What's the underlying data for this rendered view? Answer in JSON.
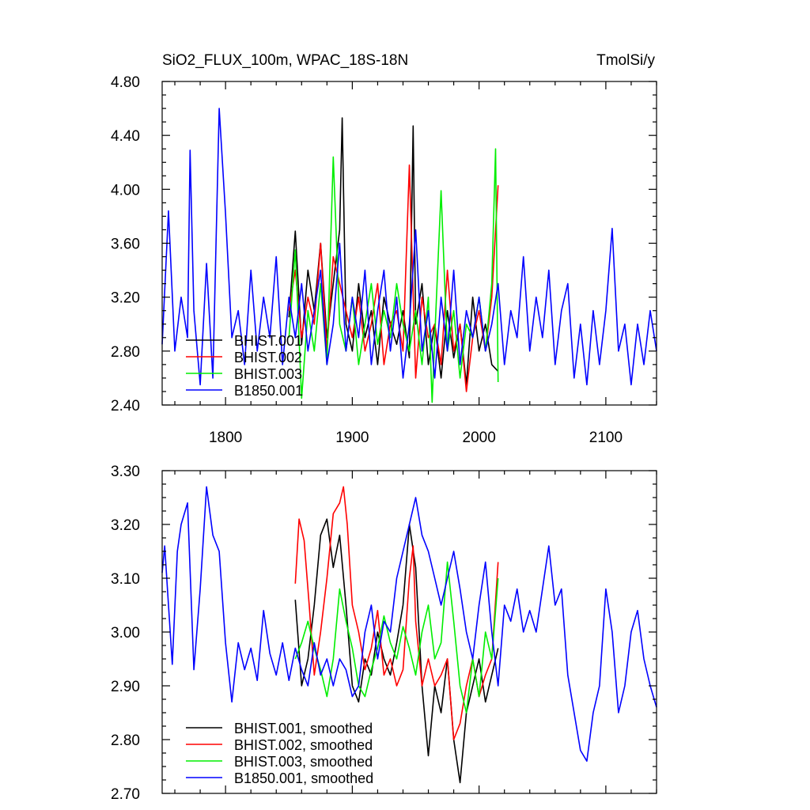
{
  "chart_data": [
    {
      "type": "line",
      "title": "SiO2_FLUX_100m, WPAC_18S-18N",
      "units": "TmolSi/y",
      "xlim": [
        1750,
        2140
      ],
      "ylim": [
        2.4,
        4.8
      ],
      "xticks": [
        1800,
        1900,
        2000,
        2100
      ],
      "xtick_labels": [
        "1800",
        "1900",
        "2000",
        "2100"
      ],
      "yticks": [
        2.4,
        2.8,
        3.2,
        3.6,
        4.0,
        4.4,
        4.8
      ],
      "ytick_labels": [
        "2.40",
        "2.80",
        "3.20",
        "3.60",
        "4.00",
        "4.40",
        "4.80"
      ],
      "legend_position": "bottom-left",
      "series": [
        {
          "name": "BHIST.001",
          "color": "#000000",
          "x": [
            1850,
            1855,
            1860,
            1865,
            1870,
            1875,
            1880,
            1885,
            1890,
            1892,
            1895,
            1900,
            1905,
            1910,
            1915,
            1920,
            1925,
            1930,
            1935,
            1940,
            1945,
            1948,
            1950,
            1955,
            1960,
            1965,
            1970,
            1975,
            1980,
            1985,
            1990,
            1995,
            2000,
            2005,
            2010,
            2015
          ],
          "y": [
            3.05,
            3.69,
            2.85,
            3.4,
            3.1,
            3.6,
            2.9,
            3.3,
            3.7,
            4.53,
            3.0,
            2.8,
            3.3,
            2.9,
            3.1,
            2.7,
            3.2,
            3.0,
            2.85,
            3.1,
            2.75,
            4.47,
            3.0,
            3.3,
            2.7,
            3.0,
            2.6,
            3.1,
            2.75,
            3.0,
            2.55,
            3.2,
            2.8,
            3.0,
            2.7,
            2.65
          ]
        },
        {
          "name": "BHIST.002",
          "color": "#ff0000",
          "x": [
            1850,
            1855,
            1860,
            1865,
            1870,
            1875,
            1880,
            1885,
            1890,
            1895,
            1900,
            1905,
            1910,
            1915,
            1920,
            1925,
            1930,
            1935,
            1940,
            1945,
            1950,
            1955,
            1960,
            1965,
            1970,
            1975,
            1980,
            1985,
            1990,
            1995,
            2000,
            2005,
            2010,
            2015
          ],
          "y": [
            3.1,
            3.4,
            2.9,
            3.2,
            3.0,
            3.6,
            2.8,
            3.5,
            3.3,
            3.1,
            2.9,
            3.2,
            2.8,
            3.0,
            3.3,
            2.7,
            3.0,
            3.1,
            2.8,
            4.18,
            2.6,
            3.2,
            2.9,
            3.0,
            2.7,
            3.4,
            2.8,
            3.0,
            2.5,
            2.9,
            3.1,
            2.8,
            3.2,
            4.03
          ]
        },
        {
          "name": "BHIST.003",
          "color": "#00ee00",
          "x": [
            1850,
            1855,
            1860,
            1865,
            1870,
            1875,
            1880,
            1885,
            1890,
            1895,
            1900,
            1905,
            1910,
            1915,
            1920,
            1925,
            1930,
            1935,
            1940,
            1945,
            1950,
            1955,
            1960,
            1963,
            1965,
            1970,
            1975,
            1980,
            1985,
            1990,
            1995,
            2000,
            2005,
            2010,
            2013,
            2015
          ],
          "y": [
            2.9,
            3.55,
            2.45,
            3.1,
            2.8,
            3.3,
            2.7,
            4.24,
            3.0,
            2.8,
            3.2,
            2.7,
            3.0,
            3.3,
            2.85,
            3.1,
            2.9,
            3.3,
            3.0,
            2.8,
            3.1,
            2.7,
            3.2,
            2.42,
            2.9,
            3.99,
            2.8,
            3.1,
            2.6,
            3.0,
            2.9,
            3.2,
            2.8,
            3.3,
            4.3,
            2.57
          ]
        },
        {
          "name": "B1850.001",
          "color": "#0000ff",
          "x": [
            1750,
            1755,
            1760,
            1765,
            1770,
            1772,
            1775,
            1780,
            1785,
            1790,
            1795,
            1800,
            1805,
            1810,
            1815,
            1820,
            1825,
            1830,
            1835,
            1840,
            1845,
            1850,
            1855,
            1860,
            1865,
            1870,
            1875,
            1880,
            1885,
            1890,
            1895,
            1900,
            1905,
            1910,
            1915,
            1920,
            1925,
            1930,
            1935,
            1940,
            1945,
            1950,
            1955,
            1960,
            1965,
            1970,
            1975,
            1980,
            1985,
            1990,
            1995,
            2000,
            2005,
            2010,
            2015,
            2020,
            2025,
            2030,
            2035,
            2040,
            2045,
            2050,
            2055,
            2060,
            2065,
            2070,
            2075,
            2080,
            2085,
            2090,
            2095,
            2100,
            2105,
            2110,
            2115,
            2120,
            2125,
            2130,
            2135,
            2140
          ],
          "y": [
            2.85,
            3.84,
            2.8,
            3.2,
            2.9,
            4.29,
            3.1,
            2.55,
            3.45,
            2.6,
            4.6,
            3.82,
            2.9,
            3.1,
            2.7,
            3.4,
            2.8,
            3.2,
            2.9,
            3.5,
            2.7,
            3.2,
            2.9,
            3.3,
            2.8,
            3.1,
            3.4,
            2.7,
            3.0,
            3.6,
            2.8,
            3.2,
            2.9,
            3.4,
            2.7,
            3.1,
            3.4,
            2.8,
            3.2,
            2.6,
            3.0,
            3.7,
            2.8,
            3.1,
            2.6,
            3.2,
            2.8,
            3.4,
            2.7,
            3.1,
            2.9,
            3.2,
            2.8,
            3.0,
            3.3,
            2.7,
            3.1,
            2.9,
            3.5,
            2.8,
            3.2,
            2.9,
            3.4,
            2.7,
            3.1,
            3.3,
            2.6,
            3.0,
            2.55,
            3.1,
            2.7,
            3.1,
            3.71,
            2.8,
            3.0,
            2.55,
            3.0,
            2.7,
            3.1,
            2.8
          ]
        }
      ]
    },
    {
      "type": "line",
      "xlim": [
        1750,
        2140
      ],
      "ylim": [
        2.7,
        3.3
      ],
      "xticks": [
        1800,
        1900,
        2000,
        2100
      ],
      "yticks": [
        2.7,
        2.8,
        2.9,
        3.0,
        3.1,
        3.2,
        3.3
      ],
      "ytick_labels": [
        "2.70",
        "2.80",
        "2.90",
        "3.00",
        "3.10",
        "3.20",
        "3.30"
      ],
      "legend_position": "bottom-left",
      "series": [
        {
          "name": "BHIST.001, smoothed",
          "color": "#000000",
          "x": [
            1855,
            1860,
            1865,
            1870,
            1875,
            1880,
            1885,
            1890,
            1895,
            1900,
            1905,
            1910,
            1915,
            1920,
            1925,
            1930,
            1935,
            1940,
            1945,
            1950,
            1955,
            1960,
            1965,
            1970,
            1975,
            1980,
            1985,
            1990,
            1995,
            2000,
            2005,
            2010,
            2015
          ],
          "y": [
            3.06,
            2.9,
            2.95,
            3.05,
            3.18,
            3.21,
            3.12,
            3.18,
            3.05,
            2.9,
            2.87,
            2.95,
            2.92,
            3.0,
            2.95,
            2.92,
            2.98,
            3.05,
            3.2,
            3.12,
            2.9,
            2.77,
            2.9,
            2.85,
            2.95,
            2.8,
            2.72,
            2.85,
            2.9,
            2.95,
            2.87,
            2.92,
            2.97
          ]
        },
        {
          "name": "BHIST.002, smoothed",
          "color": "#ff0000",
          "x": [
            1855,
            1858,
            1862,
            1866,
            1870,
            1875,
            1880,
            1885,
            1890,
            1893,
            1896,
            1900,
            1905,
            1910,
            1915,
            1920,
            1925,
            1930,
            1935,
            1940,
            1945,
            1948,
            1950,
            1955,
            1960,
            1965,
            1970,
            1975,
            1980,
            1985,
            1990,
            1995,
            2000,
            2005,
            2010,
            2015
          ],
          "y": [
            3.09,
            3.21,
            3.17,
            3.05,
            2.92,
            3.0,
            3.1,
            3.22,
            3.24,
            3.27,
            3.2,
            3.05,
            3.0,
            2.93,
            2.97,
            3.04,
            2.92,
            2.95,
            2.9,
            2.93,
            3.1,
            3.16,
            3.02,
            2.9,
            2.95,
            2.9,
            2.92,
            2.95,
            2.8,
            2.83,
            2.9,
            2.95,
            2.88,
            2.92,
            2.95,
            3.13
          ]
        },
        {
          "name": "BHIST.003, smoothed",
          "color": "#00ee00",
          "x": [
            1855,
            1860,
            1865,
            1870,
            1875,
            1880,
            1885,
            1890,
            1895,
            1900,
            1905,
            1910,
            1915,
            1920,
            1925,
            1930,
            1935,
            1940,
            1945,
            1950,
            1955,
            1960,
            1965,
            1970,
            1975,
            1980,
            1985,
            1990,
            1995,
            2000,
            2005,
            2010,
            2015
          ],
          "y": [
            2.95,
            2.98,
            3.02,
            2.97,
            2.93,
            2.88,
            2.95,
            3.08,
            3.02,
            2.97,
            2.9,
            2.88,
            2.93,
            2.97,
            3.03,
            2.98,
            2.95,
            3.01,
            2.97,
            2.92,
            3.0,
            3.05,
            2.95,
            2.98,
            3.13,
            3.02,
            2.9,
            2.85,
            2.95,
            2.88,
            3.0,
            2.95,
            3.1
          ]
        },
        {
          "name": "B1850.001, smoothed",
          "color": "#0000ff",
          "x": [
            1750,
            1752,
            1755,
            1758,
            1762,
            1765,
            1770,
            1775,
            1780,
            1785,
            1790,
            1795,
            1800,
            1805,
            1810,
            1815,
            1820,
            1825,
            1830,
            1835,
            1840,
            1845,
            1850,
            1855,
            1860,
            1865,
            1870,
            1875,
            1880,
            1885,
            1890,
            1895,
            1900,
            1905,
            1910,
            1915,
            1920,
            1925,
            1930,
            1935,
            1940,
            1945,
            1950,
            1955,
            1960,
            1965,
            1970,
            1975,
            1980,
            1985,
            1990,
            1995,
            2000,
            2005,
            2010,
            2015,
            2020,
            2025,
            2030,
            2035,
            2040,
            2045,
            2050,
            2055,
            2060,
            2065,
            2070,
            2075,
            2080,
            2085,
            2090,
            2095,
            2100,
            2105,
            2110,
            2115,
            2120,
            2125,
            2130,
            2135,
            2140
          ],
          "y": [
            3.11,
            3.16,
            3.05,
            2.94,
            3.15,
            3.2,
            3.24,
            2.93,
            3.08,
            3.27,
            3.18,
            3.15,
            2.98,
            2.87,
            2.98,
            2.93,
            2.97,
            2.91,
            3.04,
            2.96,
            2.92,
            2.98,
            2.91,
            2.97,
            2.93,
            2.9,
            2.98,
            2.92,
            2.95,
            2.9,
            2.95,
            2.93,
            2.88,
            2.9,
            3.0,
            3.05,
            2.95,
            3.02,
            3.0,
            3.1,
            3.15,
            3.2,
            3.25,
            3.18,
            3.15,
            3.1,
            3.05,
            3.1,
            3.15,
            3.08,
            3.0,
            2.95,
            3.05,
            3.13,
            3.0,
            2.9,
            3.05,
            3.02,
            3.08,
            3.0,
            3.04,
            3.0,
            3.08,
            3.16,
            3.05,
            3.08,
            2.92,
            2.85,
            2.78,
            2.76,
            2.85,
            2.9,
            3.08,
            3.0,
            2.85,
            2.9,
            3.0,
            3.04,
            2.95,
            2.9,
            2.86
          ]
        }
      ]
    }
  ]
}
